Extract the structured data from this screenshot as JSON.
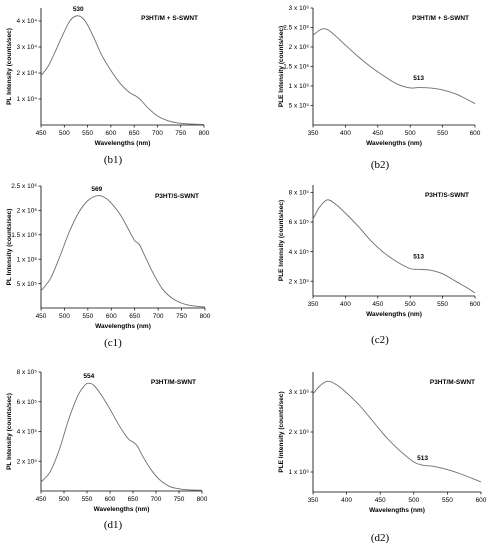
{
  "chart_data": [
    {
      "id": "b1",
      "type": "line",
      "caption": "(b1)",
      "title": "P3HT/M + S-SWNT",
      "xlabel": "Wavelengths (nm)",
      "ylabel": "PL Intensity (counts/sec)",
      "xlim": [
        450,
        800
      ],
      "ylim": [
        0,
        45000
      ],
      "xticks": [
        450,
        500,
        550,
        600,
        650,
        700,
        750,
        800
      ],
      "yticks": [
        10000,
        20000,
        30000,
        40000
      ],
      "ytick_labels": [
        "1 x 10⁴",
        "2 x 10⁴",
        "3 x 10⁴",
        "4 x 10⁴"
      ],
      "annotation": {
        "text": "530",
        "x": 530,
        "y": 42000
      },
      "series": [
        {
          "x": [
            450,
            465,
            480,
            495,
            510,
            520,
            530,
            540,
            550,
            565,
            580,
            600,
            620,
            640,
            655,
            665,
            680,
            700,
            720,
            740,
            760,
            780,
            800
          ],
          "y": [
            19000,
            22500,
            28000,
            34000,
            39500,
            41500,
            42000,
            41000,
            38500,
            33000,
            27000,
            21000,
            16000,
            12500,
            11000,
            9500,
            6500,
            3500,
            1800,
            900,
            500,
            300,
            200
          ]
        }
      ]
    },
    {
      "id": "b2",
      "type": "line",
      "caption": "(b2)",
      "title": "P3HT/M + S-SWNT",
      "xlabel": "Wavelengths (nm)",
      "ylabel": "PLE Intensity (counts/sec)",
      "xlim": [
        350,
        600
      ],
      "ylim": [
        0,
        3000000
      ],
      "xticks": [
        350,
        400,
        450,
        500,
        550,
        600
      ],
      "yticks": [
        500000,
        1000000,
        1500000,
        2000000,
        2500000,
        3000000
      ],
      "ytick_labels": [
        "5 x 10⁵",
        "1 x 10⁶",
        "1.5 x 10⁶",
        "2 x 10⁶",
        "2.5 x 10⁶",
        "3 x 10⁶"
      ],
      "annotation": {
        "text": "513",
        "x": 513,
        "y": 1020000
      },
      "series": [
        {
          "x": [
            350,
            360,
            367,
            375,
            385,
            400,
            420,
            440,
            460,
            480,
            500,
            513,
            530,
            550,
            570,
            585,
            600
          ],
          "y": [
            2300000,
            2430000,
            2470000,
            2420000,
            2280000,
            2050000,
            1750000,
            1480000,
            1250000,
            1050000,
            950000,
            960000,
            950000,
            900000,
            800000,
            680000,
            550000
          ]
        }
      ]
    },
    {
      "id": "c1",
      "type": "line",
      "caption": "(c1)",
      "title": "P3HT/S-SWNT",
      "xlabel": "Wavelengths (nm)",
      "ylabel": "PL Intensity (counts/sec)",
      "xlim": [
        450,
        800
      ],
      "ylim": [
        0,
        2500000
      ],
      "xticks": [
        450,
        500,
        550,
        600,
        650,
        700,
        750,
        800
      ],
      "yticks": [
        500000,
        1000000,
        1500000,
        2000000,
        2500000
      ],
      "ytick_labels": [
        "5 x 10⁵",
        "1 x 10⁶",
        "1.5 x 10⁶",
        "2 x 10⁶",
        "2.5 x 10⁶"
      ],
      "annotation": {
        "text": "569",
        "x": 569,
        "y": 2300000
      },
      "series": [
        {
          "x": [
            450,
            470,
            490,
            510,
            530,
            550,
            569,
            585,
            600,
            620,
            640,
            650,
            660,
            670,
            690,
            710,
            730,
            750,
            770,
            800
          ],
          "y": [
            350000,
            600000,
            1050000,
            1550000,
            1950000,
            2200000,
            2300000,
            2270000,
            2150000,
            1900000,
            1550000,
            1380000,
            1300000,
            1100000,
            700000,
            380000,
            200000,
            100000,
            50000,
            20000
          ]
        }
      ]
    },
    {
      "id": "c2",
      "type": "line",
      "caption": "(c2)",
      "title": "P3HT/S-SWNT",
      "xlabel": "Wavelengths (nm)",
      "ylabel": "PLE Intensity (counts/sec)",
      "xlim": [
        350,
        600
      ],
      "ylim": [
        100000,
        850000
      ],
      "xticks": [
        350,
        400,
        450,
        500,
        550,
        600
      ],
      "yticks": [
        200000,
        400000,
        600000,
        800000
      ],
      "ytick_labels": [
        "2 x 10⁵",
        "4 x 10⁵",
        "6 x 10⁵",
        "8 x 10⁵"
      ],
      "annotation": {
        "text": "513",
        "x": 513,
        "y": 320000
      },
      "series": [
        {
          "x": [
            350,
            360,
            372,
            385,
            400,
            420,
            440,
            460,
            480,
            500,
            513,
            530,
            550,
            570,
            590,
            600
          ],
          "y": [
            620000,
            700000,
            750000,
            720000,
            660000,
            570000,
            470000,
            390000,
            330000,
            285000,
            280000,
            275000,
            250000,
            200000,
            150000,
            120000
          ]
        }
      ]
    },
    {
      "id": "d1",
      "type": "line",
      "caption": "(d1)",
      "title": "P3HT/M-SWNT",
      "xlabel": "Wavelengths (nm)",
      "ylabel": "PL Intensity (counts/sec)",
      "xlim": [
        450,
        800
      ],
      "ylim": [
        0,
        800000
      ],
      "xticks": [
        450,
        500,
        550,
        600,
        650,
        700,
        750,
        800
      ],
      "yticks": [
        200000,
        400000,
        600000,
        800000
      ],
      "ytick_labels": [
        "2 x 10⁵",
        "4 x 10⁵",
        "6 x 10⁵",
        "8 x 10⁵"
      ],
      "annotation": {
        "text": "554",
        "x": 554,
        "y": 725000
      },
      "series": [
        {
          "x": [
            450,
            470,
            490,
            510,
            530,
            545,
            554,
            565,
            580,
            600,
            620,
            640,
            650,
            660,
            670,
            690,
            710,
            730,
            750,
            770,
            800
          ],
          "y": [
            60000,
            130000,
            280000,
            480000,
            640000,
            710000,
            725000,
            710000,
            650000,
            550000,
            440000,
            350000,
            330000,
            300000,
            240000,
            140000,
            70000,
            30000,
            15000,
            8000,
            5000
          ]
        }
      ]
    },
    {
      "id": "d2",
      "type": "line",
      "caption": "(d2)",
      "title": "P3HT/M-SWNT",
      "xlabel": "Wavelengths (nm)",
      "ylabel": "PLE Intensity (counts/sec)",
      "xlim": [
        350,
        600
      ],
      "ylim": [
        500000,
        3500000
      ],
      "xticks": [
        350,
        400,
        450,
        500,
        550,
        600
      ],
      "yticks": [
        1000000,
        2000000,
        3000000
      ],
      "ytick_labels": [
        "1 x 10⁶",
        "2 x 10⁶",
        "3 x 10⁶"
      ],
      "annotation": {
        "text": "513",
        "x": 513,
        "y": 1170000
      },
      "series": [
        {
          "x": [
            350,
            360,
            372,
            385,
            400,
            420,
            440,
            460,
            480,
            500,
            513,
            530,
            550,
            570,
            590,
            600
          ],
          "y": [
            2950000,
            3150000,
            3270000,
            3180000,
            2980000,
            2650000,
            2250000,
            1850000,
            1520000,
            1250000,
            1170000,
            1140000,
            1060000,
            950000,
            820000,
            750000
          ]
        }
      ]
    }
  ]
}
